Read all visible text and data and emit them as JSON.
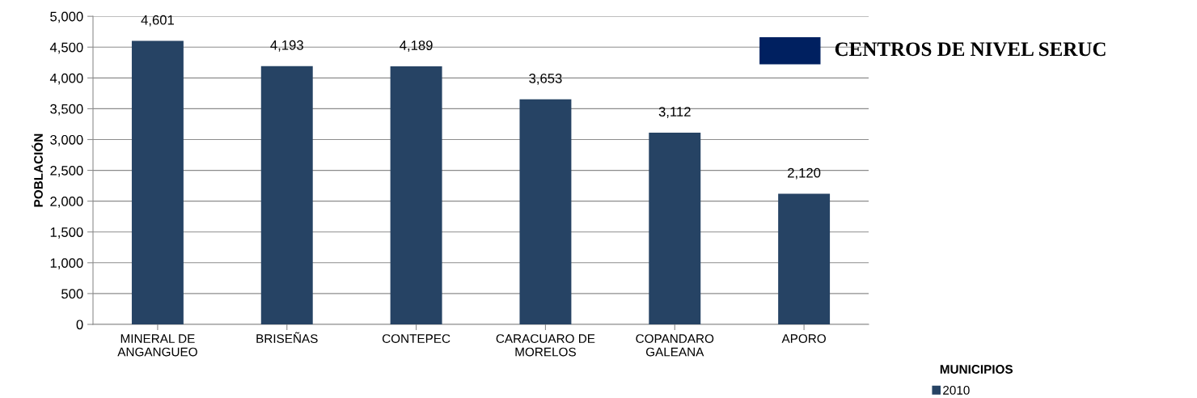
{
  "chart_data": {
    "type": "bar",
    "ylabel": "POBLACIÓN",
    "categories": [
      "MINERAL DE\nANGANGUEO",
      "BRISEÑAS",
      "CONTEPEC",
      "CARACUARO DE\nMORELOS",
      "COPANDARO\nGALEANA",
      "APORO"
    ],
    "series": [
      {
        "name": "2010",
        "color": "#264364",
        "values": [
          4601,
          4193,
          4189,
          3653,
          3112,
          2120
        ],
        "value_labels": [
          "4,601",
          "4,193",
          "4,189",
          "3,653",
          "3,112",
          "2,120"
        ]
      }
    ],
    "ylim": [
      0,
      5000
    ],
    "yticks": [
      {
        "value": 0,
        "label": "0"
      },
      {
        "value": 500,
        "label": "500"
      },
      {
        "value": 1000,
        "label": "1,000"
      },
      {
        "value": 1500,
        "label": "1,500"
      },
      {
        "value": 2000,
        "label": "2,000"
      },
      {
        "value": 2500,
        "label": "2,500"
      },
      {
        "value": 3000,
        "label": "3,000"
      },
      {
        "value": 3500,
        "label": "3,500"
      },
      {
        "value": 4000,
        "label": "4,000"
      },
      {
        "value": 4500,
        "label": "4,500"
      },
      {
        "value": 5000,
        "label": "5,000"
      }
    ],
    "grid": "y",
    "legend": "bottom right",
    "annotations": [
      "CENTROS DE NIVEL SERUC",
      "MUNICIPIOS"
    ]
  }
}
